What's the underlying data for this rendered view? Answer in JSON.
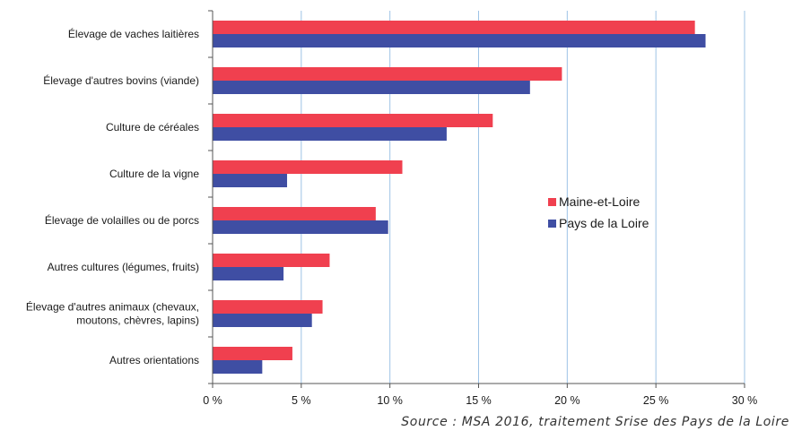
{
  "chart_data": {
    "type": "bar",
    "orientation": "horizontal",
    "categories": [
      [
        "Élevage de vaches laitières"
      ],
      [
        "Élevage d'autres bovins (viande)"
      ],
      [
        "Culture de céréales"
      ],
      [
        "Culture de la vigne"
      ],
      [
        "Élevage de volailles ou de porcs"
      ],
      [
        "Autres cultures (légumes, fruits)"
      ],
      [
        "Élevage d'autres animaux (chevaux,",
        "moutons, chèvres, lapins)"
      ],
      [
        "Autres orientations"
      ]
    ],
    "series": [
      {
        "name": "Maine-et-Loire",
        "color": "#f0404f",
        "values": [
          27.2,
          19.7,
          15.8,
          10.7,
          9.2,
          6.6,
          6.2,
          4.5
        ]
      },
      {
        "name": "Pays de la Loire",
        "color": "#3f4ea3",
        "values": [
          27.8,
          17.9,
          13.2,
          4.2,
          9.9,
          4.0,
          5.6,
          2.8
        ]
      }
    ],
    "xlim": [
      0,
      30
    ],
    "xticks": [
      0,
      5,
      10,
      15,
      20,
      25,
      30
    ],
    "tick_format": "{v} %",
    "grid": "vertical",
    "legend_position": "center-right"
  },
  "source": "Source : MSA 2016, traitement Srise des Pays de la Loire"
}
